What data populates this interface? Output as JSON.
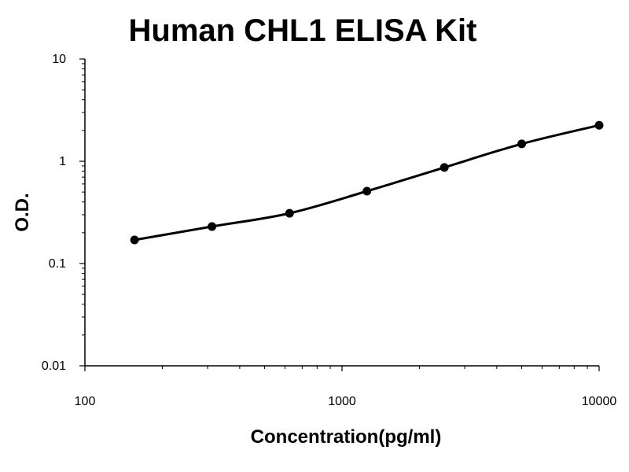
{
  "chart_data": {
    "type": "scatter",
    "title": "Human CHL1 ELISA Kit",
    "xlabel": "Concentration(pg/ml)",
    "ylabel": "O.D.",
    "x_scale": "log",
    "y_scale": "log",
    "xlim": [
      100,
      10000
    ],
    "ylim": [
      0.01,
      10
    ],
    "x_ticks": [
      "100",
      "1000",
      "10000"
    ],
    "y_ticks": [
      "0.01",
      "0.1",
      "1",
      "10"
    ],
    "grid": false,
    "legend": "none",
    "series": [
      {
        "x": [
          156,
          312,
          625,
          1250,
          2500,
          5000,
          10000
        ],
        "y": [
          0.17,
          0.23,
          0.31,
          0.51,
          0.87,
          1.48,
          2.25
        ],
        "marker": "circle",
        "fit_curve": true,
        "color": "#000000"
      }
    ]
  }
}
